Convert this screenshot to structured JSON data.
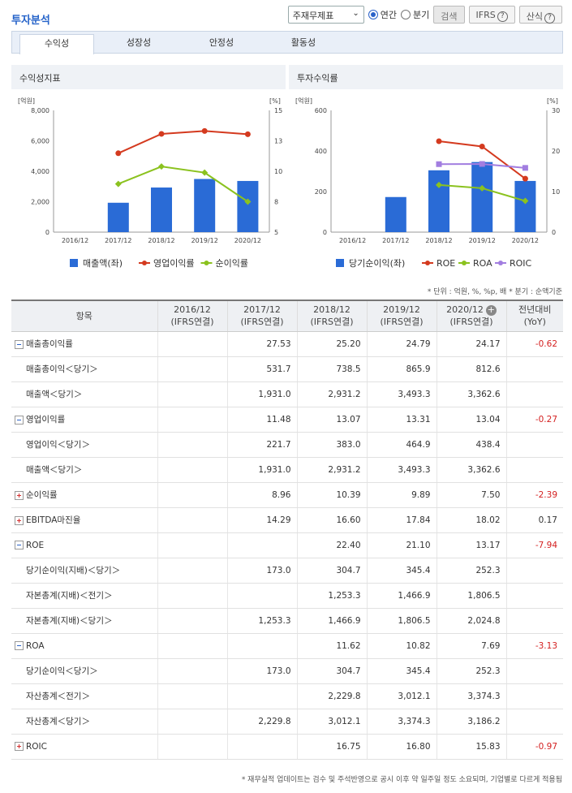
{
  "header": {
    "title": "투자분석",
    "select_value": "주재무제표",
    "radio_annual": "연간",
    "radio_quarter": "분기",
    "search_button": "검색",
    "ifrs_button": "IFRS",
    "formula_button": "산식",
    "help_glyph": "?"
  },
  "tabs": [
    "수익성",
    "성장성",
    "안정성",
    "활동성"
  ],
  "charts": {
    "left_title": "수익성지표",
    "right_title": "투자수익률"
  },
  "chart_data": [
    {
      "type": "bar",
      "title": "수익성지표",
      "categories": [
        "2016/12",
        "2017/12",
        "2018/12",
        "2019/12",
        "2020/12"
      ],
      "left_axis": {
        "unit": "[억원]",
        "ticks": [
          "8,000",
          "6,000",
          "4,000",
          "2,000",
          "0"
        ],
        "ylim": [
          0,
          8000
        ]
      },
      "right_axis": {
        "unit": "[%]",
        "ticks": [
          "15",
          "13",
          "10",
          "8",
          "5"
        ],
        "ylim": [
          5,
          15
        ]
      },
      "series": [
        {
          "name": "매출액(좌)",
          "kind": "bar",
          "axis": "left",
          "color": "#2a6bd6",
          "values": [
            null,
            1931.0,
            2931.2,
            3493.3,
            3362.6
          ]
        },
        {
          "name": "영업이익률",
          "kind": "line",
          "axis": "right",
          "color": "#d43a1f",
          "values": [
            null,
            11.48,
            13.07,
            13.31,
            13.04
          ]
        },
        {
          "name": "순이익률",
          "kind": "line",
          "axis": "right",
          "color": "#8bc21f",
          "values": [
            null,
            8.96,
            10.39,
            9.89,
            7.5
          ]
        }
      ]
    },
    {
      "type": "bar",
      "title": "투자수익률",
      "categories": [
        "2016/12",
        "2017/12",
        "2018/12",
        "2019/12",
        "2020/12"
      ],
      "left_axis": {
        "unit": "[억원]",
        "ticks": [
          "600",
          "400",
          "200",
          "0"
        ],
        "ylim": [
          0,
          600
        ]
      },
      "right_axis": {
        "unit": "[%]",
        "ticks": [
          "30",
          "20",
          "10",
          "0"
        ],
        "ylim": [
          0,
          30
        ]
      },
      "series": [
        {
          "name": "당기순이익(좌)",
          "kind": "bar",
          "axis": "left",
          "color": "#2a6bd6",
          "values": [
            null,
            173.0,
            304.7,
            345.4,
            252.3
          ]
        },
        {
          "name": "ROE",
          "kind": "line",
          "axis": "right",
          "color": "#d43a1f",
          "values": [
            null,
            null,
            22.4,
            21.1,
            13.17
          ]
        },
        {
          "name": "ROA",
          "kind": "line",
          "axis": "right",
          "color": "#8bc21f",
          "values": [
            null,
            null,
            11.62,
            10.82,
            7.69
          ]
        },
        {
          "name": "ROIC",
          "kind": "line",
          "axis": "right",
          "color": "#a27ee0",
          "values": [
            null,
            null,
            16.75,
            16.8,
            15.83
          ]
        }
      ]
    }
  ],
  "notes": {
    "unit_note": "* 단위 : 억원, %, %p, 배   * 분기 : 순액기준",
    "footer_note": "* 재무실적 업데이트는 검수 및 주석반영으로 공시 이후 약 일주일 정도 소요되며, 기업별로 다르게 적용됨"
  },
  "table": {
    "head_label": "항목",
    "head_add": "+",
    "columns": [
      {
        "period": "2016/12",
        "basis": "(IFRS연결)"
      },
      {
        "period": "2017/12",
        "basis": "(IFRS연결)"
      },
      {
        "period": "2018/12",
        "basis": "(IFRS연결)"
      },
      {
        "period": "2019/12",
        "basis": "(IFRS연결)"
      },
      {
        "period": "2020/12",
        "basis": "(IFRS연결)"
      }
    ],
    "yoy_label": "전년대비",
    "yoy_sub": "(YoY)",
    "rows": [
      {
        "label": "매출총이익률",
        "type": "minus",
        "values": [
          "",
          "27.53",
          "25.20",
          "24.79",
          "24.17"
        ],
        "yoy": "-0.62"
      },
      {
        "label": "매출총이익＜당기＞",
        "type": "sub",
        "values": [
          "",
          "531.7",
          "738.5",
          "865.9",
          "812.6"
        ],
        "yoy": ""
      },
      {
        "label": "매출액＜당기＞",
        "type": "sub",
        "values": [
          "",
          "1,931.0",
          "2,931.2",
          "3,493.3",
          "3,362.6"
        ],
        "yoy": ""
      },
      {
        "label": "영업이익률",
        "type": "minus",
        "values": [
          "",
          "11.48",
          "13.07",
          "13.31",
          "13.04"
        ],
        "yoy": "-0.27"
      },
      {
        "label": "영업이익＜당기＞",
        "type": "sub",
        "values": [
          "",
          "221.7",
          "383.0",
          "464.9",
          "438.4"
        ],
        "yoy": ""
      },
      {
        "label": "매출액＜당기＞",
        "type": "sub",
        "values": [
          "",
          "1,931.0",
          "2,931.2",
          "3,493.3",
          "3,362.6"
        ],
        "yoy": ""
      },
      {
        "label": "순이익률",
        "type": "plus",
        "values": [
          "",
          "8.96",
          "10.39",
          "9.89",
          "7.50"
        ],
        "yoy": "-2.39"
      },
      {
        "label": "EBITDA마진율",
        "type": "plus",
        "values": [
          "",
          "14.29",
          "16.60",
          "17.84",
          "18.02"
        ],
        "yoy": "0.17"
      },
      {
        "label": "ROE",
        "type": "minus",
        "values": [
          "",
          "",
          "22.40",
          "21.10",
          "13.17"
        ],
        "yoy": "-7.94"
      },
      {
        "label": "당기순이익(지배)＜당기＞",
        "type": "sub",
        "values": [
          "",
          "173.0",
          "304.7",
          "345.4",
          "252.3"
        ],
        "yoy": ""
      },
      {
        "label": "자본총계(지배)＜전기＞",
        "type": "sub",
        "values": [
          "",
          "",
          "1,253.3",
          "1,466.9",
          "1,806.5"
        ],
        "yoy": ""
      },
      {
        "label": "자본총계(지배)＜당기＞",
        "type": "sub",
        "values": [
          "",
          "1,253.3",
          "1,466.9",
          "1,806.5",
          "2,024.8"
        ],
        "yoy": ""
      },
      {
        "label": "ROA",
        "type": "minus",
        "values": [
          "",
          "",
          "11.62",
          "10.82",
          "7.69"
        ],
        "yoy": "-3.13"
      },
      {
        "label": "당기순이익＜당기＞",
        "type": "sub",
        "values": [
          "",
          "173.0",
          "304.7",
          "345.4",
          "252.3"
        ],
        "yoy": ""
      },
      {
        "label": "자산총계＜전기＞",
        "type": "sub",
        "values": [
          "",
          "",
          "2,229.8",
          "3,012.1",
          "3,374.3"
        ],
        "yoy": ""
      },
      {
        "label": "자산총계＜당기＞",
        "type": "sub",
        "values": [
          "",
          "2,229.8",
          "3,012.1",
          "3,374.3",
          "3,186.2"
        ],
        "yoy": ""
      },
      {
        "label": "ROIC",
        "type": "plus",
        "values": [
          "",
          "",
          "16.75",
          "16.80",
          "15.83"
        ],
        "yoy": "-0.97"
      }
    ]
  }
}
